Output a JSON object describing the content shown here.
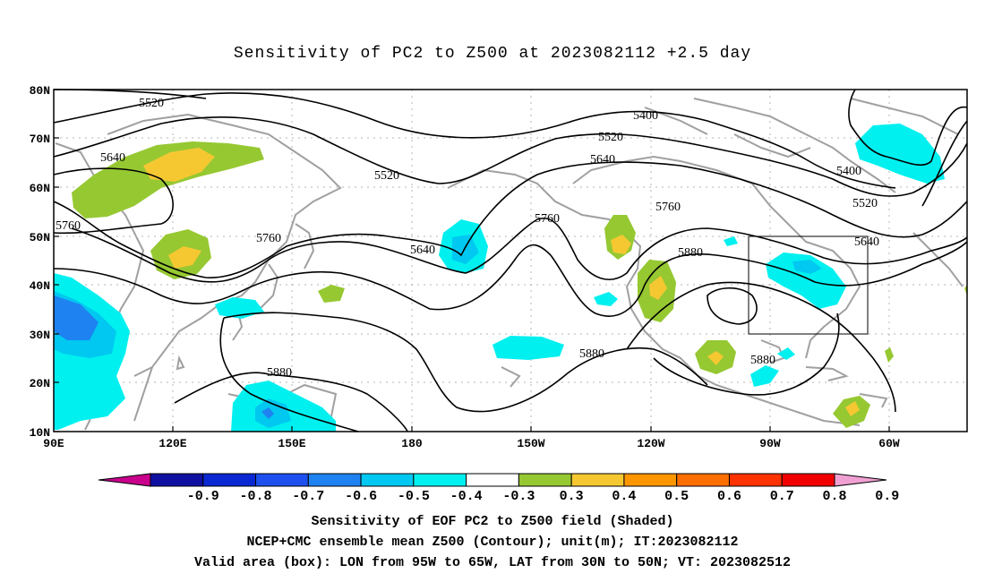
{
  "title": "Sensitivity of PC2 to Z500 at 2023082112 +2.5 day",
  "lat_labels": [
    "80N",
    "70N",
    "60N",
    "50N",
    "40N",
    "30N",
    "20N",
    "10N"
  ],
  "lon_labels": [
    "90E",
    "120E",
    "150E",
    "180",
    "150W",
    "120W",
    "90W",
    "60W"
  ],
  "contour_labels": [
    {
      "text": "5520"
    },
    {
      "text": "5640"
    },
    {
      "text": "5760"
    },
    {
      "text": "5520"
    },
    {
      "text": "5760"
    },
    {
      "text": "5640"
    },
    {
      "text": "5880"
    },
    {
      "text": "5400"
    },
    {
      "text": "5520"
    },
    {
      "text": "5640"
    },
    {
      "text": "5760"
    },
    {
      "text": "5760"
    },
    {
      "text": "5880"
    },
    {
      "text": "5880"
    },
    {
      "text": "5880"
    },
    {
      "text": "5400"
    },
    {
      "text": "5520"
    },
    {
      "text": "5640"
    }
  ],
  "colorbar": {
    "labels": [
      "-0.9",
      "-0.8",
      "-0.7",
      "-0.6",
      "-0.5",
      "-0.4",
      "-0.3",
      "0.3",
      "0.4",
      "0.5",
      "0.6",
      "0.7",
      "0.8",
      "0.9"
    ],
    "colors": [
      "#c8008c",
      "#1010a0",
      "#0a28d2",
      "#1e50f0",
      "#1e82f0",
      "#00c8f0",
      "#00f0f0",
      "#ffffff",
      "#96c832",
      "#f5c832",
      "#ff9600",
      "#ff6e00",
      "#ff3200",
      "#f00000",
      "#f0a0d2"
    ]
  },
  "captions": {
    "line1": "Sensitivity of EOF PC2 to Z500 field (Shaded)",
    "line2": "NCEP+CMC ensemble mean Z500 (Contour); unit(m); IT:2023082112",
    "line3": "Valid area (box): LON from 95W to 65W, LAT from 30N to 50N; VT: 2023082512"
  }
}
